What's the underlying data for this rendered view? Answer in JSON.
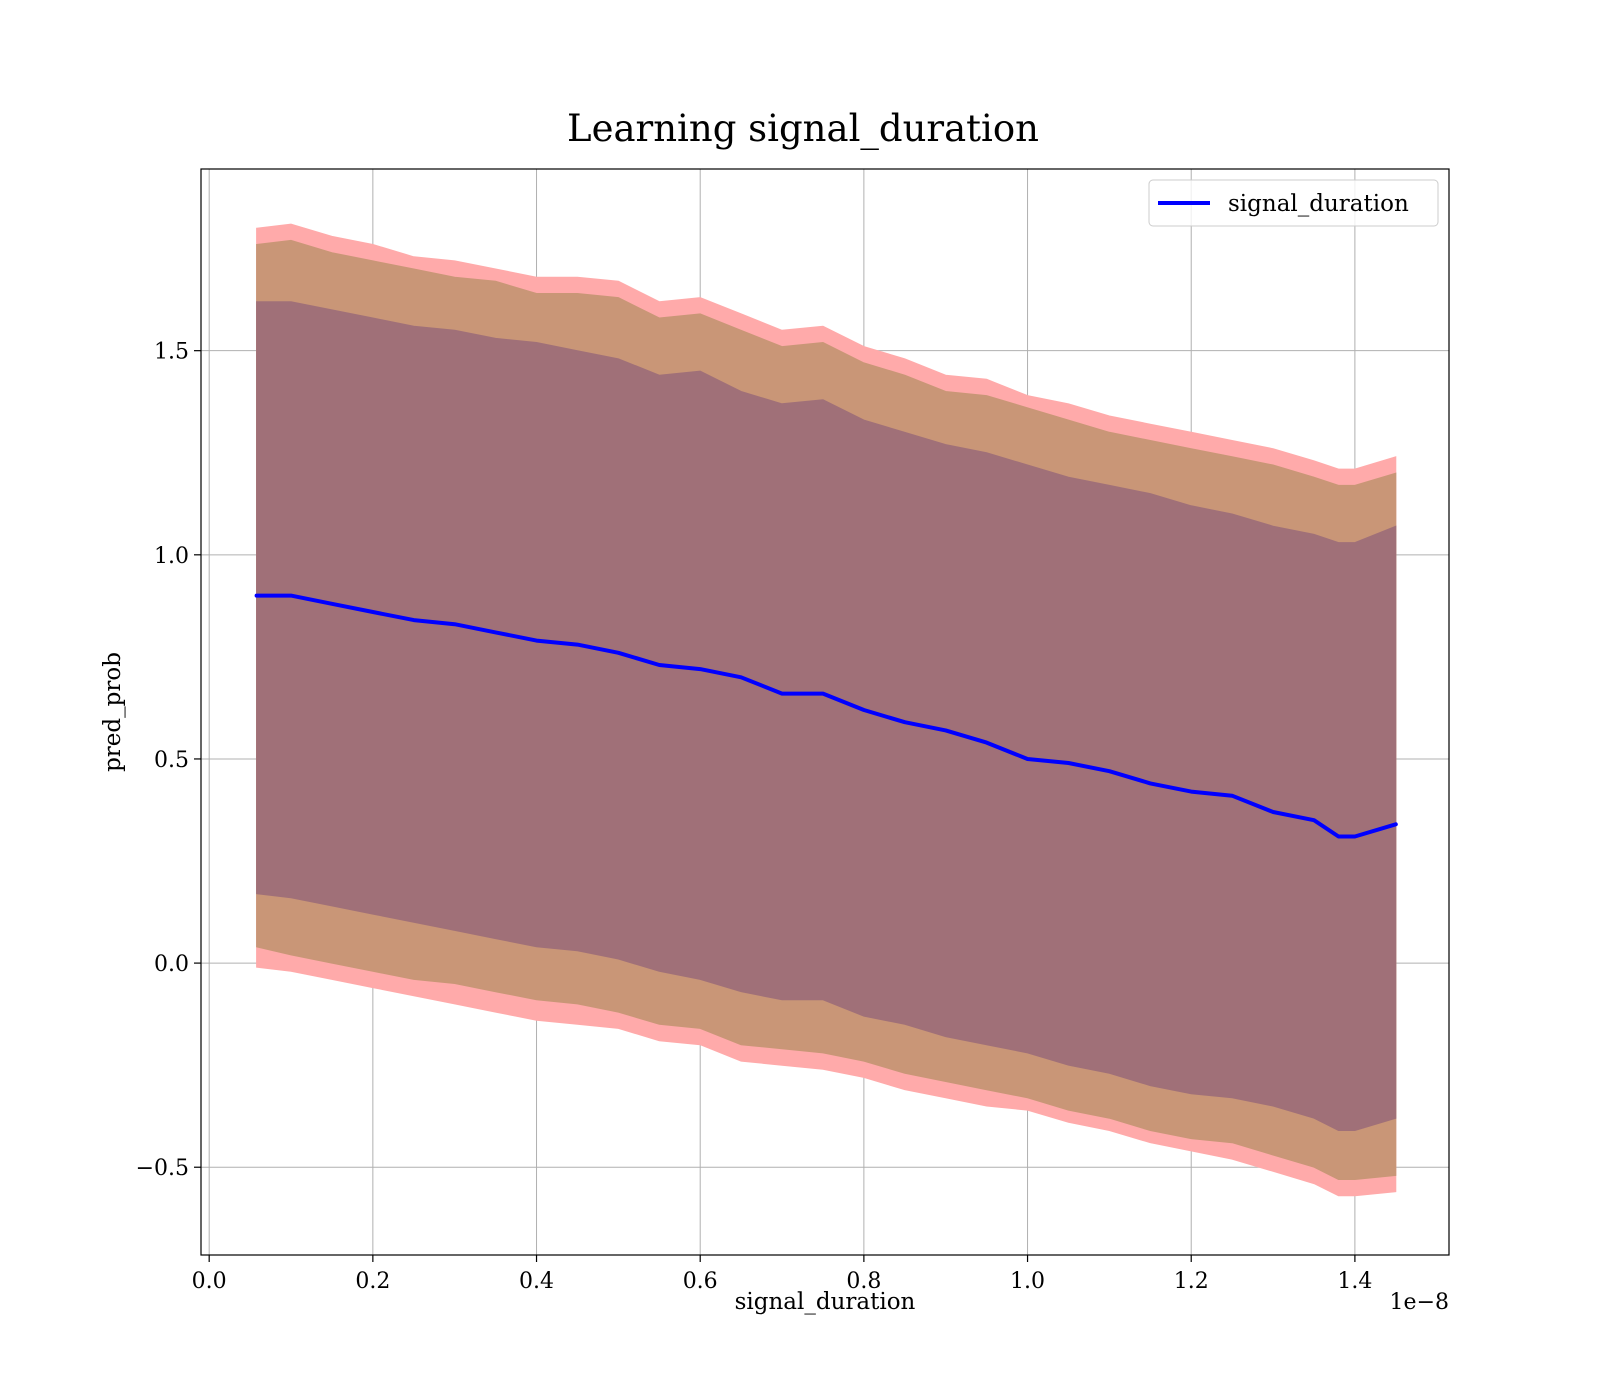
{
  "chart_data": {
    "type": "line",
    "title": "Learning signal_duration",
    "xlabel": "signal_duration",
    "ylabel": "pred_prob",
    "x_offset_label": "1e−8",
    "x_scale": 1e-08,
    "xlim": [
      -0.01,
      1.515
    ],
    "ylim": [
      -0.715,
      1.945
    ],
    "xticks": [
      0.0,
      0.2,
      0.4,
      0.6,
      0.8,
      1.0,
      1.2,
      1.4
    ],
    "xtick_labels": [
      "0.0",
      "0.2",
      "0.4",
      "0.6",
      "0.8",
      "1.0",
      "1.2",
      "1.4"
    ],
    "yticks": [
      -0.5,
      0.0,
      0.5,
      1.0,
      1.5
    ],
    "ytick_labels": [
      "−0.5",
      "0.0",
      "0.5",
      "1.0",
      "1.5"
    ],
    "grid": true,
    "legend": {
      "position": "top-right",
      "entries": [
        "signal_duration"
      ]
    },
    "colors": {
      "line": "#0000ff",
      "band_outer": "#ffaaaa",
      "band_middle": "#c99677",
      "band_inner": "#a07078",
      "grid": "#b0b0b0"
    },
    "x": [
      0.058,
      0.1,
      0.15,
      0.2,
      0.25,
      0.3,
      0.35,
      0.4,
      0.45,
      0.5,
      0.55,
      0.6,
      0.65,
      0.7,
      0.75,
      0.8,
      0.85,
      0.9,
      0.95,
      1.0,
      1.05,
      1.1,
      1.15,
      1.2,
      1.25,
      1.3,
      1.35,
      1.38,
      1.4,
      1.45
    ],
    "series": [
      {
        "name": "signal_duration",
        "y": [
          0.9,
          0.9,
          0.88,
          0.86,
          0.84,
          0.83,
          0.81,
          0.79,
          0.78,
          0.76,
          0.73,
          0.72,
          0.7,
          0.66,
          0.66,
          0.62,
          0.59,
          0.57,
          0.54,
          0.5,
          0.49,
          0.47,
          0.44,
          0.42,
          0.41,
          0.37,
          0.35,
          0.31,
          0.31,
          0.34
        ]
      }
    ],
    "bands": [
      {
        "lower": [
          -0.01,
          -0.02,
          -0.04,
          -0.06,
          -0.08,
          -0.1,
          -0.12,
          -0.14,
          -0.15,
          -0.16,
          -0.19,
          -0.2,
          -0.24,
          -0.25,
          -0.26,
          -0.28,
          -0.31,
          -0.33,
          -0.35,
          -0.36,
          -0.39,
          -0.41,
          -0.44,
          -0.46,
          -0.48,
          -0.51,
          -0.54,
          -0.57,
          -0.57,
          -0.56
        ],
        "upper": [
          1.8,
          1.81,
          1.78,
          1.76,
          1.73,
          1.72,
          1.7,
          1.68,
          1.68,
          1.67,
          1.62,
          1.63,
          1.59,
          1.55,
          1.56,
          1.51,
          1.48,
          1.44,
          1.43,
          1.39,
          1.37,
          1.34,
          1.32,
          1.3,
          1.28,
          1.26,
          1.23,
          1.21,
          1.21,
          1.24
        ]
      },
      {
        "lower": [
          0.04,
          0.02,
          0.0,
          -0.02,
          -0.04,
          -0.05,
          -0.07,
          -0.09,
          -0.1,
          -0.12,
          -0.15,
          -0.16,
          -0.2,
          -0.21,
          -0.22,
          -0.24,
          -0.27,
          -0.29,
          -0.31,
          -0.33,
          -0.36,
          -0.38,
          -0.41,
          -0.43,
          -0.44,
          -0.47,
          -0.5,
          -0.53,
          -0.53,
          -0.52
        ],
        "upper": [
          1.76,
          1.77,
          1.74,
          1.72,
          1.7,
          1.68,
          1.67,
          1.64,
          1.64,
          1.63,
          1.58,
          1.59,
          1.55,
          1.51,
          1.52,
          1.47,
          1.44,
          1.4,
          1.39,
          1.36,
          1.33,
          1.3,
          1.28,
          1.26,
          1.24,
          1.22,
          1.19,
          1.17,
          1.17,
          1.2
        ]
      },
      {
        "lower": [
          0.17,
          0.16,
          0.14,
          0.12,
          0.1,
          0.08,
          0.06,
          0.04,
          0.03,
          0.01,
          -0.02,
          -0.04,
          -0.07,
          -0.09,
          -0.09,
          -0.13,
          -0.15,
          -0.18,
          -0.2,
          -0.22,
          -0.25,
          -0.27,
          -0.3,
          -0.32,
          -0.33,
          -0.35,
          -0.38,
          -0.41,
          -0.41,
          -0.38
        ],
        "upper": [
          1.62,
          1.62,
          1.6,
          1.58,
          1.56,
          1.55,
          1.53,
          1.52,
          1.5,
          1.48,
          1.44,
          1.45,
          1.4,
          1.37,
          1.38,
          1.33,
          1.3,
          1.27,
          1.25,
          1.22,
          1.19,
          1.17,
          1.15,
          1.12,
          1.1,
          1.07,
          1.05,
          1.03,
          1.03,
          1.07
        ]
      }
    ]
  }
}
